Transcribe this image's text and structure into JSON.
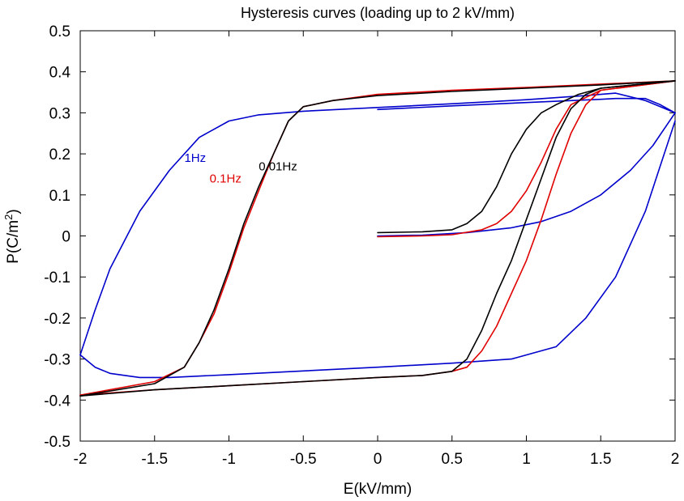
{
  "chart_data": {
    "type": "line",
    "title": "Hysteresis curves (loading up to 2 kV/mm)",
    "xlabel": "E(kV/mm)",
    "ylabel": "P(C/m",
    "ylabel_sup": "2",
    "ylabel_close": ")",
    "xlim": [
      -2,
      2
    ],
    "ylim": [
      -0.5,
      0.5
    ],
    "xticks": [
      -2,
      -1.5,
      -1,
      -0.5,
      0,
      0.5,
      1,
      1.5,
      2
    ],
    "xtick_labels": [
      "-2",
      "-1.5",
      "-1",
      "-0.5",
      "0",
      "0.5",
      "1",
      "1.5",
      "2"
    ],
    "yticks": [
      -0.5,
      -0.4,
      -0.3,
      -0.2,
      -0.1,
      0,
      0.1,
      0.2,
      0.3,
      0.4,
      0.5
    ],
    "ytick_labels": [
      "-0.5",
      "-0.4",
      "-0.3",
      "-0.2",
      "-0.1",
      "0",
      "0.1",
      "0.2",
      "0.3",
      "0.4",
      "0.5"
    ],
    "grid": false,
    "series": [
      {
        "name": "1Hz",
        "color": "#0000cc",
        "label_at": [
          -1.3,
          0.18
        ],
        "segments": [
          [
            [
              0,
              0.0
            ],
            [
              0.3,
              0.002
            ],
            [
              0.6,
              0.008
            ],
            [
              0.9,
              0.02
            ],
            [
              1.1,
              0.035
            ],
            [
              1.3,
              0.06
            ],
            [
              1.5,
              0.1
            ],
            [
              1.7,
              0.16
            ],
            [
              1.85,
              0.22
            ],
            [
              2.0,
              0.3
            ]
          ],
          [
            [
              2.0,
              0.3
            ],
            [
              1.9,
              0.32
            ],
            [
              1.8,
              0.335
            ],
            [
              1.6,
              0.335
            ],
            [
              1.5,
              0.333
            ],
            [
              1.0,
              0.325
            ],
            [
              0.5,
              0.317
            ],
            [
              0.0,
              0.308
            ]
          ],
          [
            [
              2.0,
              0.3
            ],
            [
              1.8,
              0.33
            ],
            [
              1.6,
              0.348
            ],
            [
              1.4,
              0.342
            ],
            [
              1.0,
              0.332
            ],
            [
              0.5,
              0.322
            ],
            [
              0.0,
              0.313
            ],
            [
              -0.5,
              0.304
            ],
            [
              -0.8,
              0.295
            ],
            [
              -1.0,
              0.28
            ],
            [
              -1.2,
              0.24
            ],
            [
              -1.4,
              0.16
            ],
            [
              -1.6,
              0.06
            ],
            [
              -1.8,
              -0.08
            ],
            [
              -1.9,
              -0.18
            ],
            [
              -2.0,
              -0.29
            ]
          ],
          [
            [
              -2.0,
              -0.29
            ],
            [
              -1.9,
              -0.32
            ],
            [
              -1.8,
              -0.335
            ],
            [
              -1.6,
              -0.345
            ],
            [
              -1.4,
              -0.345
            ],
            [
              -1.0,
              -0.338
            ],
            [
              -0.5,
              -0.329
            ],
            [
              0.0,
              -0.32
            ],
            [
              0.5,
              -0.31
            ],
            [
              0.9,
              -0.3
            ],
            [
              1.2,
              -0.27
            ],
            [
              1.4,
              -0.2
            ],
            [
              1.6,
              -0.1
            ],
            [
              1.8,
              0.06
            ],
            [
              1.9,
              0.17
            ],
            [
              2.0,
              0.28
            ]
          ]
        ]
      },
      {
        "name": "0.1Hz",
        "color": "#e00000",
        "label_at": [
          -1.13,
          0.13
        ],
        "segments": [
          [
            [
              0,
              -0.002
            ],
            [
              0.3,
              0.0
            ],
            [
              0.5,
              0.003
            ],
            [
              0.7,
              0.015
            ],
            [
              0.8,
              0.03
            ],
            [
              0.9,
              0.06
            ],
            [
              1.0,
              0.11
            ],
            [
              1.1,
              0.18
            ],
            [
              1.2,
              0.26
            ],
            [
              1.3,
              0.32
            ],
            [
              1.5,
              0.355
            ],
            [
              2.0,
              0.378
            ]
          ],
          [
            [
              2.0,
              0.378
            ],
            [
              1.5,
              0.37
            ],
            [
              1.0,
              0.362
            ],
            [
              0.5,
              0.355
            ],
            [
              0.0,
              0.345
            ],
            [
              -0.3,
              0.33
            ],
            [
              -0.5,
              0.315
            ],
            [
              -0.6,
              0.28
            ],
            [
              -0.7,
              0.2
            ],
            [
              -0.8,
              0.11
            ],
            [
              -0.9,
              0.02
            ],
            [
              -1.0,
              -0.09
            ],
            [
              -1.1,
              -0.19
            ],
            [
              -1.2,
              -0.26
            ],
            [
              -1.3,
              -0.32
            ],
            [
              -1.5,
              -0.355
            ],
            [
              -2.0,
              -0.388
            ]
          ],
          [
            [
              -2.0,
              -0.388
            ],
            [
              -1.5,
              -0.375
            ],
            [
              -1.0,
              -0.365
            ],
            [
              -0.5,
              -0.355
            ],
            [
              0.0,
              -0.345
            ],
            [
              0.3,
              -0.34
            ],
            [
              0.5,
              -0.33
            ],
            [
              0.6,
              -0.32
            ],
            [
              0.7,
              -0.28
            ],
            [
              0.8,
              -0.22
            ],
            [
              0.9,
              -0.14
            ],
            [
              1.0,
              -0.06
            ],
            [
              1.1,
              0.04
            ],
            [
              1.2,
              0.15
            ],
            [
              1.3,
              0.25
            ],
            [
              1.4,
              0.32
            ],
            [
              1.5,
              0.355
            ],
            [
              2.0,
              0.378
            ]
          ]
        ]
      },
      {
        "name": "0.01Hz",
        "color": "#000000",
        "label_at": [
          -0.8,
          0.16
        ],
        "segments": [
          [
            [
              0,
              0.008
            ],
            [
              0.3,
              0.01
            ],
            [
              0.5,
              0.015
            ],
            [
              0.6,
              0.03
            ],
            [
              0.7,
              0.06
            ],
            [
              0.8,
              0.12
            ],
            [
              0.9,
              0.2
            ],
            [
              1.0,
              0.26
            ],
            [
              1.1,
              0.3
            ],
            [
              1.2,
              0.32
            ],
            [
              1.35,
              0.345
            ],
            [
              1.5,
              0.36
            ],
            [
              2.0,
              0.378
            ]
          ],
          [
            [
              2.0,
              0.378
            ],
            [
              1.5,
              0.368
            ],
            [
              1.0,
              0.36
            ],
            [
              0.5,
              0.352
            ],
            [
              0.0,
              0.342
            ],
            [
              -0.3,
              0.33
            ],
            [
              -0.5,
              0.315
            ],
            [
              -0.6,
              0.28
            ],
            [
              -0.7,
              0.2
            ],
            [
              -0.8,
              0.12
            ],
            [
              -0.9,
              0.03
            ],
            [
              -1.0,
              -0.08
            ],
            [
              -1.1,
              -0.18
            ],
            [
              -1.2,
              -0.26
            ],
            [
              -1.3,
              -0.32
            ],
            [
              -1.5,
              -0.36
            ],
            [
              -2.0,
              -0.39
            ]
          ],
          [
            [
              -2.0,
              -0.39
            ],
            [
              -1.5,
              -0.375
            ],
            [
              -1.0,
              -0.365
            ],
            [
              -0.5,
              -0.355
            ],
            [
              0.0,
              -0.345
            ],
            [
              0.3,
              -0.34
            ],
            [
              0.5,
              -0.33
            ],
            [
              0.6,
              -0.3
            ],
            [
              0.7,
              -0.23
            ],
            [
              0.8,
              -0.14
            ],
            [
              0.9,
              -0.06
            ],
            [
              1.0,
              0.04
            ],
            [
              1.1,
              0.14
            ],
            [
              1.2,
              0.24
            ],
            [
              1.3,
              0.31
            ],
            [
              1.4,
              0.345
            ],
            [
              1.5,
              0.36
            ],
            [
              2.0,
              0.378
            ]
          ]
        ]
      }
    ]
  }
}
